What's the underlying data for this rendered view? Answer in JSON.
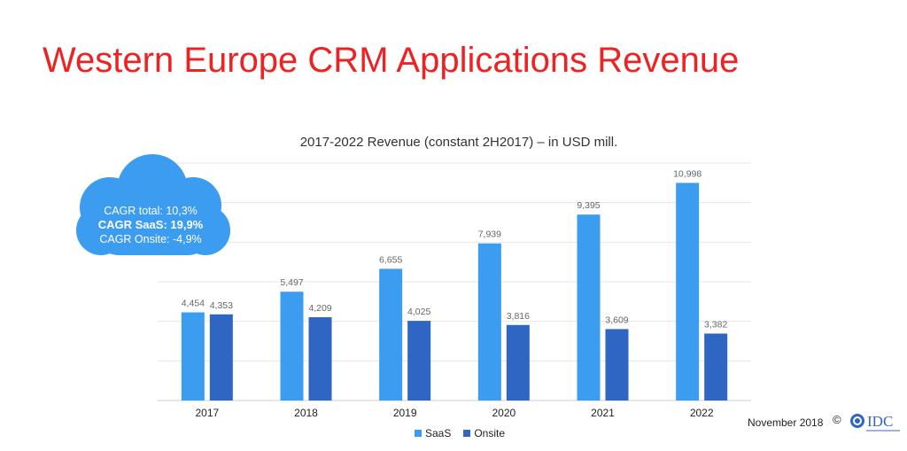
{
  "title": "Western Europe CRM Applications Revenue",
  "chart_title": "2017-2022 Revenue (constant 2H2017) – in USD mill.",
  "cloud": {
    "line1": "CAGR total: 10,3%",
    "line2": "CAGR SaaS: 19,9%",
    "line3": "CAGR Onsite: -4,9%"
  },
  "footer": {
    "date": "November 2018",
    "copyright": "©",
    "logo_text": "IDC"
  },
  "colors": {
    "saas": "#3b9cf0",
    "onsite": "#2f66c4",
    "title": "#ee2222",
    "grid": "#e6e6e6",
    "cloud": "#3b9cf0"
  },
  "chart_data": {
    "type": "bar",
    "title": "2017-2022 Revenue (constant 2H2017) – in USD mill.",
    "categories": [
      "2017",
      "2018",
      "2019",
      "2020",
      "2021",
      "2022"
    ],
    "series": [
      {
        "name": "SaaS",
        "values": [
          4454,
          5497,
          6655,
          7939,
          9395,
          10998
        ],
        "labels": [
          "4,454",
          "5,497",
          "6,655",
          "7,939",
          "9,395",
          "10,998"
        ]
      },
      {
        "name": "Onsite",
        "values": [
          4353,
          4209,
          4025,
          3816,
          3609,
          3382
        ],
        "labels": [
          "4,353",
          "4,209",
          "4,025",
          "3,816",
          "3,609",
          "3,382"
        ]
      }
    ],
    "ylim": [
      0,
      12000
    ],
    "grid": true,
    "legend": "bottom"
  }
}
